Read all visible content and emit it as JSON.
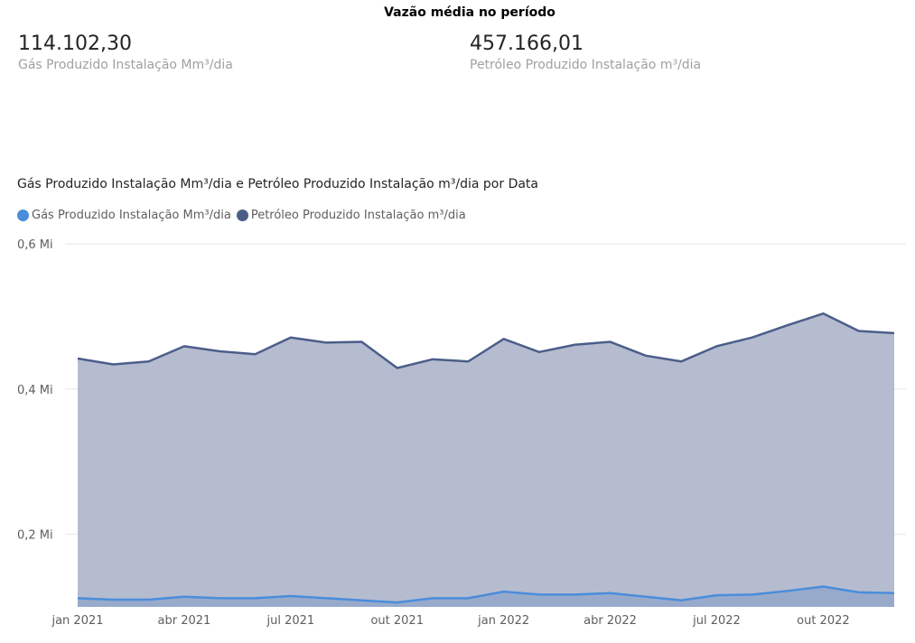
{
  "header": {
    "title": "Vazão média no período"
  },
  "kpis": [
    {
      "value": "114.102,30",
      "label": "Gás Produzido Instalação Mm³/dia"
    },
    {
      "value": "457.166,01",
      "label": "Petróleo Produzido Instalação m³/dia"
    }
  ],
  "colors": {
    "gas": "#4a8ddb",
    "oil": "#4b5e8a",
    "oil_fill": "#b6bccf",
    "gas_fill": "#98aacb",
    "grid": "#e6e6e6"
  },
  "chart_data": {
    "type": "area",
    "title": "Gás Produzido Instalação Mm³/dia e Petróleo Produzido Instalação m³/dia por Data",
    "legend_position": "top-left",
    "grid": true,
    "x": [
      "jan 2021",
      "fev 2021",
      "mar 2021",
      "abr 2021",
      "mai 2021",
      "jun 2021",
      "jul 2021",
      "ago 2021",
      "set 2021",
      "out 2021",
      "nov 2021",
      "dez 2021",
      "jan 2022",
      "fev 2022",
      "mar 2022",
      "abr 2022",
      "mai 2022",
      "jun 2022",
      "jul 2022",
      "ago 2022",
      "set 2022",
      "out 2022",
      "nov 2022",
      "dez 2022"
    ],
    "x_tick_labels": [
      "jan 2021",
      "abr 2021",
      "jul 2021",
      "out 2021",
      "jan 2022",
      "abr 2022",
      "jul 2022",
      "out 2022"
    ],
    "x_tick_indices": [
      0,
      3,
      6,
      9,
      12,
      15,
      18,
      21
    ],
    "y_tick_labels": [
      "0,2 Mi",
      "0,4 Mi",
      "0,6 Mi"
    ],
    "y_tick_values": [
      0.2,
      0.4,
      0.6
    ],
    "ylim": [
      0.1,
      0.6
    ],
    "series": [
      {
        "name": "Gás Produzido Instalação Mm³/dia",
        "values": [
          0.112,
          0.11,
          0.11,
          0.114,
          0.112,
          0.112,
          0.115,
          0.112,
          0.109,
          0.106,
          0.112,
          0.112,
          0.121,
          0.117,
          0.117,
          0.119,
          0.114,
          0.109,
          0.116,
          0.117,
          0.122,
          0.128,
          0.12,
          0.119
        ]
      },
      {
        "name": "Petróleo Produzido Instalação m³/dia",
        "values": [
          0.442,
          0.434,
          0.438,
          0.459,
          0.452,
          0.448,
          0.471,
          0.464,
          0.465,
          0.429,
          0.441,
          0.438,
          0.469,
          0.451,
          0.461,
          0.465,
          0.446,
          0.438,
          0.459,
          0.471,
          0.488,
          0.504,
          0.48,
          0.477
        ]
      }
    ]
  }
}
